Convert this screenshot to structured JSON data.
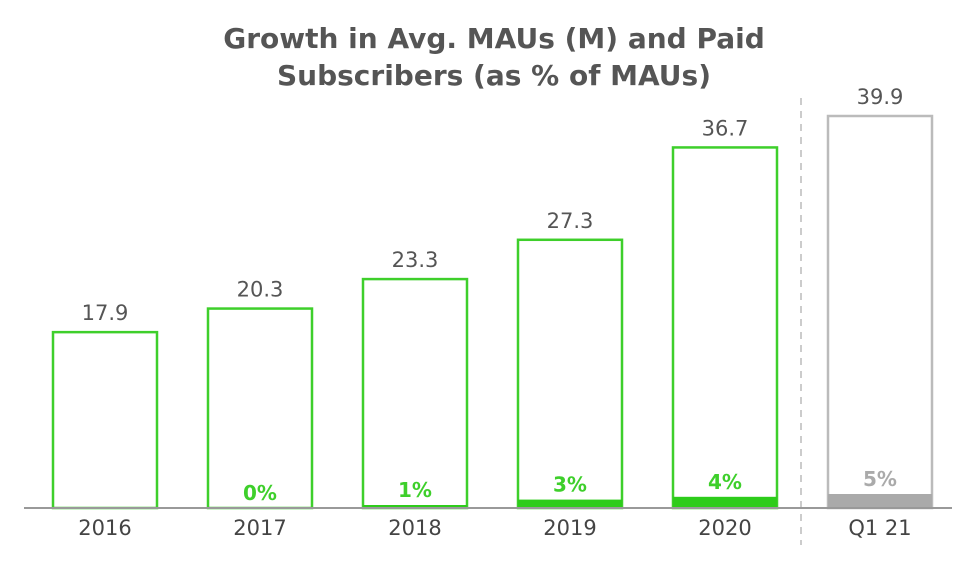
{
  "chart_data": {
    "type": "bar",
    "title": [
      "Growth in Avg. MAUs (M) and Paid",
      "Subscribers (as % of MAUs)"
    ],
    "categories": [
      "2016",
      "2017",
      "2018",
      "2019",
      "2020",
      "Q1 21"
    ],
    "series": [
      {
        "name": "",
        "values": [
          17.9,
          20.3,
          23.3,
          27.3,
          36.7,
          39.9
        ],
        "labels": [
          "17.9",
          "20.3",
          "23.3",
          "27.3",
          "36.7",
          "39.9"
        ]
      },
      {
        "name": "",
        "values": [
          null,
          0,
          1,
          3,
          4,
          5
        ],
        "labels": [
          "",
          "0%",
          "1%",
          "3%",
          "4%",
          "5%"
        ]
      }
    ],
    "ylim": [
      0,
      40
    ],
    "grid": false,
    "colors": {
      "bar_outline": "#3ecf2b",
      "paid_fill": "#2dcc1a",
      "paid_label": "#3ecf2b",
      "forecast_outline": "#bbbbbb",
      "forecast_fill": "#aaaaaa",
      "forecast_label": "#aaaaaa",
      "axis": "#999999",
      "divider": "#cccccc",
      "text": "#555555"
    }
  }
}
